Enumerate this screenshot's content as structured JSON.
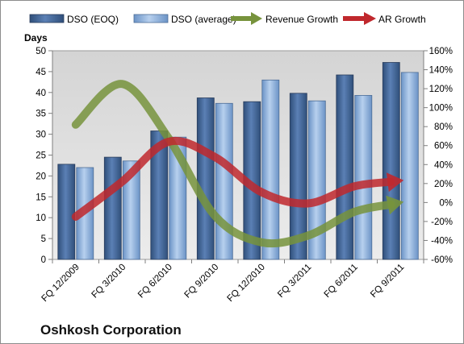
{
  "chart_data": {
    "type": "bar",
    "company": "Oshkosh Corporation",
    "ylabel": "Days",
    "categories": [
      "FQ 12/2009",
      "FQ 3/2010",
      "FQ 6/2010",
      "FQ 9/2010",
      "FQ 12/2010",
      "FQ 3/2011",
      "FQ 6/2011",
      "FQ 9/2011"
    ],
    "ylim": [
      0,
      50
    ],
    "y_ticks": [
      0,
      5,
      10,
      15,
      20,
      25,
      30,
      35,
      40,
      45,
      50
    ],
    "y2lim": [
      -60,
      160
    ],
    "y2_ticks": [
      "-60%",
      "-40%",
      "-20%",
      "0%",
      "20%",
      "40%",
      "60%",
      "80%",
      "100%",
      "120%",
      "140%",
      "160%"
    ],
    "y2_tick_values": [
      -60,
      -40,
      -20,
      0,
      20,
      40,
      60,
      80,
      100,
      120,
      140,
      160
    ],
    "series": [
      {
        "name": "DSO (EOQ)",
        "type": "bar",
        "axis": "left",
        "color": "#4a6fa5",
        "values": [
          22.8,
          24.5,
          30.8,
          38.7,
          37.8,
          39.8,
          44.2,
          47.2
        ]
      },
      {
        "name": "DSO (average)",
        "type": "bar",
        "axis": "left",
        "color": "#8fb4e3",
        "values": [
          22.0,
          23.6,
          29.3,
          37.4,
          43.0,
          38.0,
          39.3,
          44.8
        ]
      },
      {
        "name": "Revenue Growth",
        "type": "line",
        "axis": "right",
        "color": "#77933c",
        "values": [
          82,
          125,
          68,
          -14,
          -42,
          -35,
          -10,
          0
        ]
      },
      {
        "name": "AR Growth",
        "type": "line",
        "axis": "right",
        "color": "#c0282d",
        "values": [
          -15,
          22,
          64,
          48,
          11,
          -1,
          17,
          23
        ]
      }
    ],
    "grid": false,
    "legend": "top"
  }
}
